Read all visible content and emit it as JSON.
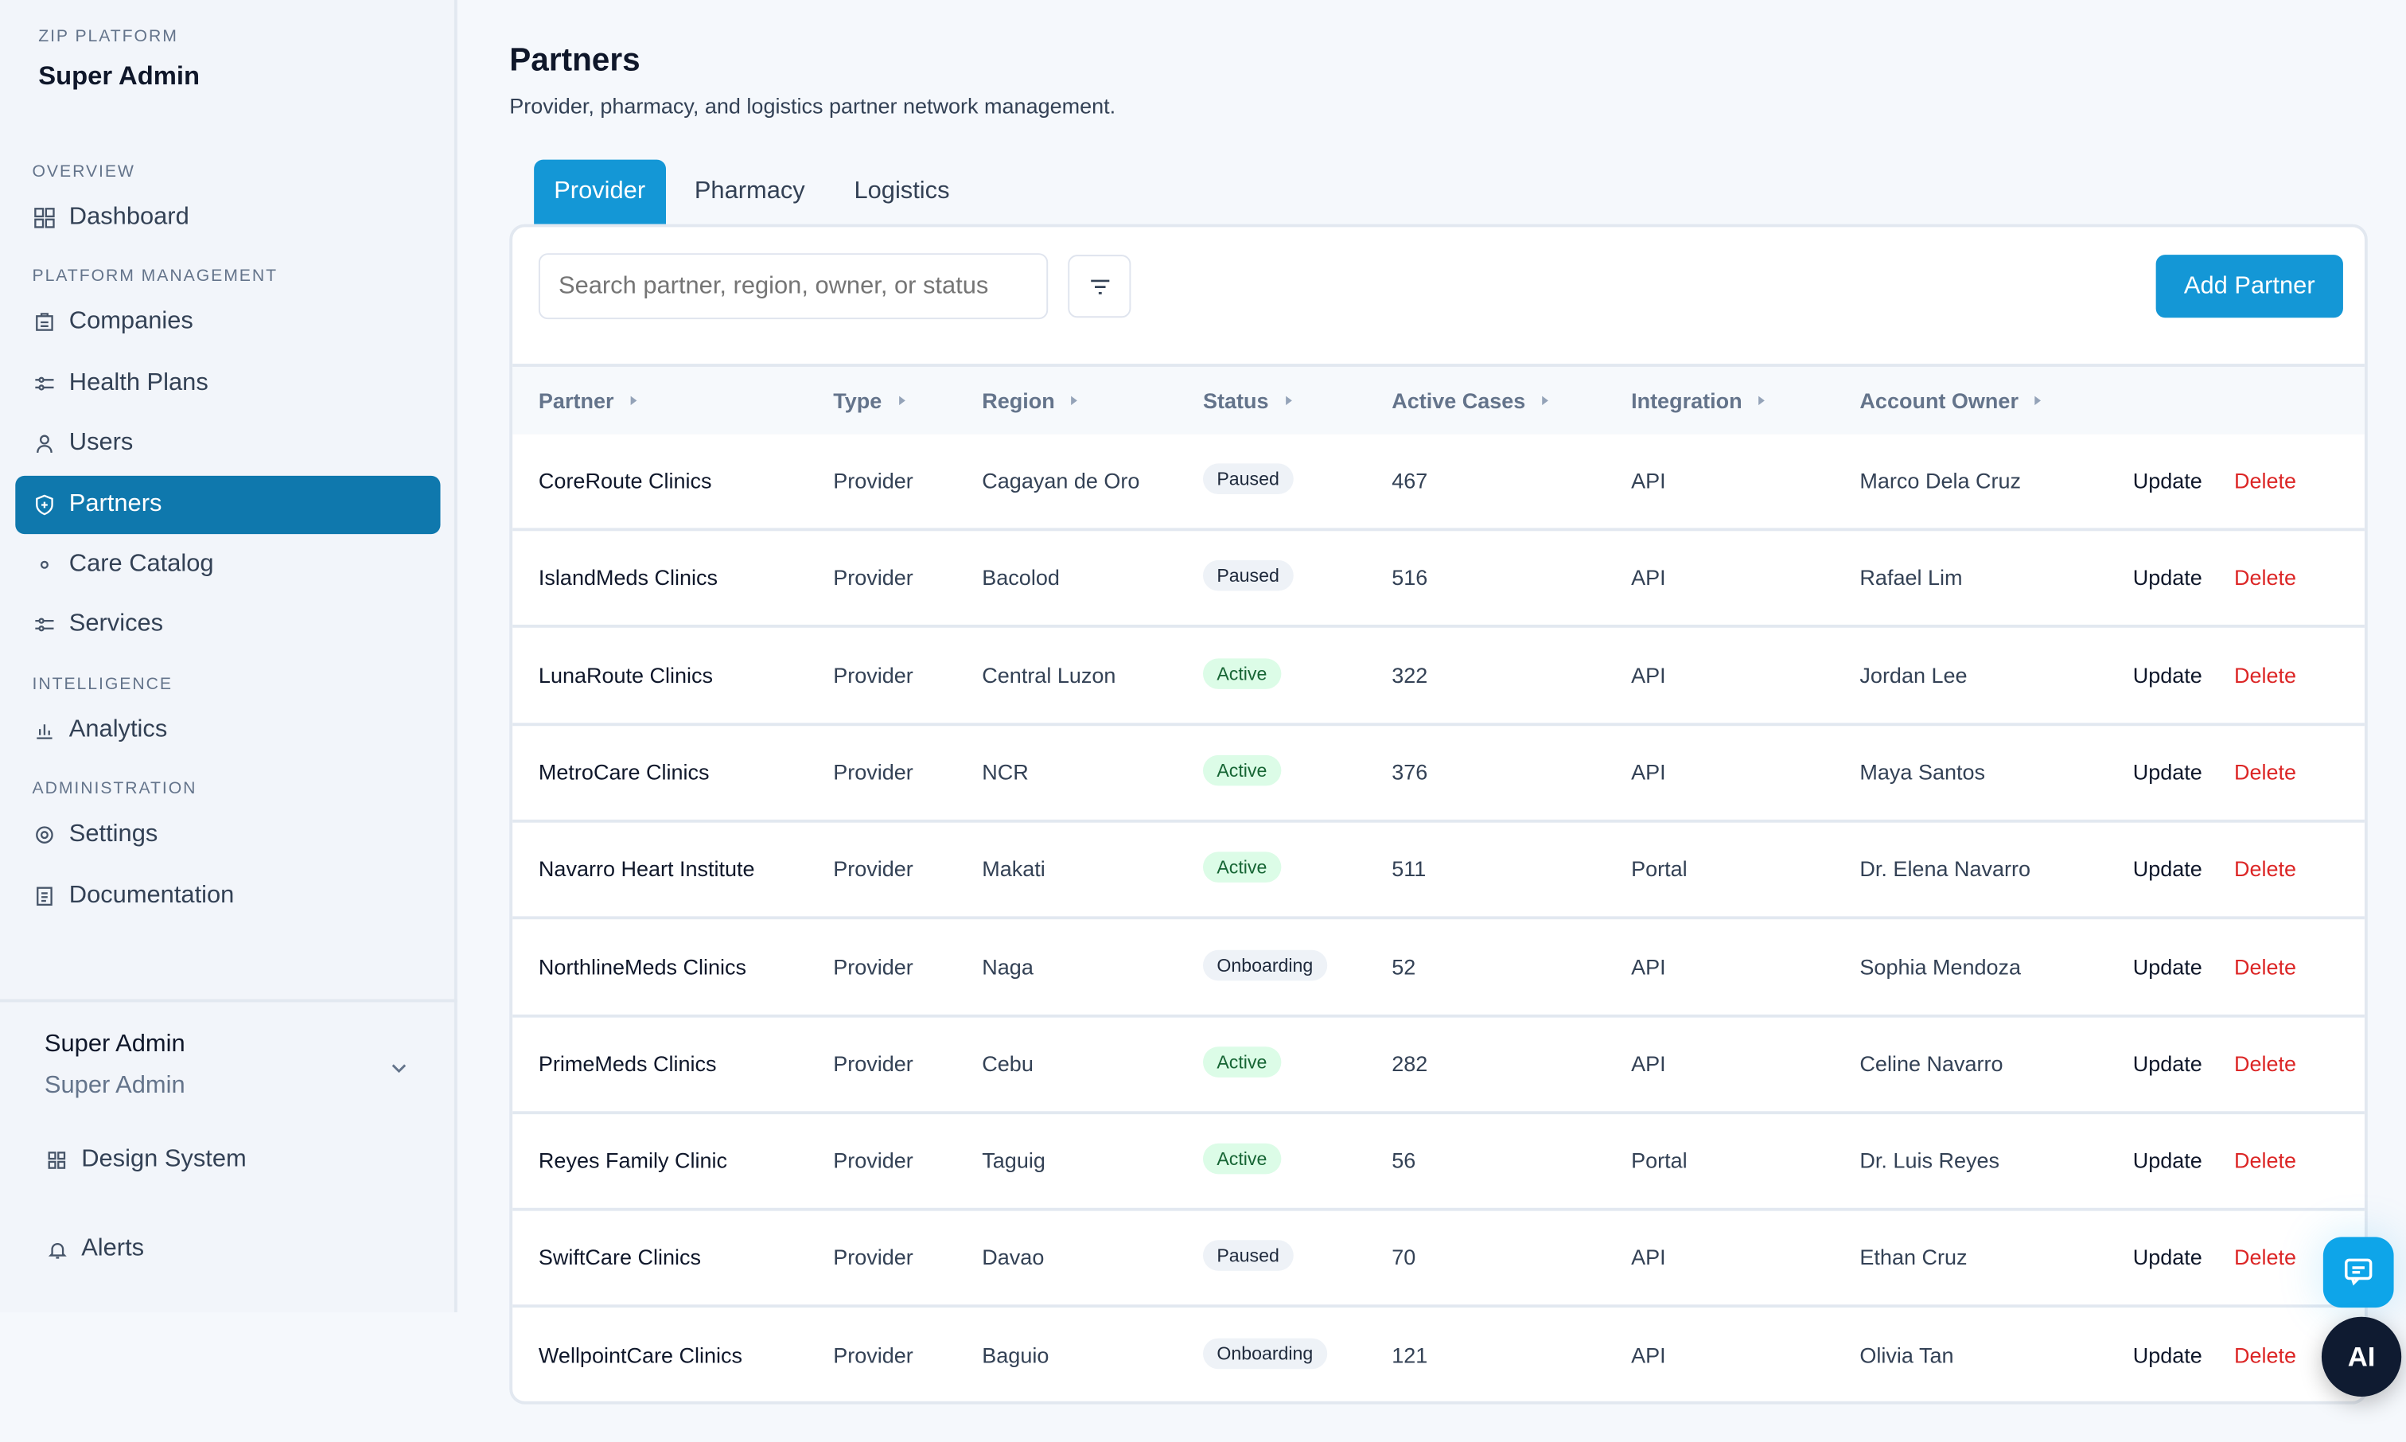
{
  "sidebar": {
    "brand_small": "ZIP PLATFORM",
    "brand_title": "Super Admin",
    "sections": [
      {
        "label": "OVERVIEW",
        "items": [
          {
            "label": "Dashboard",
            "icon": "dashboard-icon"
          }
        ]
      },
      {
        "label": "PLATFORM MANAGEMENT",
        "items": [
          {
            "label": "Companies",
            "icon": "building-icon"
          },
          {
            "label": "Health Plans",
            "icon": "sliders-icon"
          },
          {
            "label": "Users",
            "icon": "user-icon"
          },
          {
            "label": "Partners",
            "icon": "shield-plus-icon",
            "active": true
          },
          {
            "label": "Care Catalog",
            "icon": "dot-icon"
          },
          {
            "label": "Services",
            "icon": "sliders-icon"
          }
        ]
      },
      {
        "label": "INTELLIGENCE",
        "items": [
          {
            "label": "Analytics",
            "icon": "bar-chart-icon"
          }
        ]
      },
      {
        "label": "ADMINISTRATION",
        "items": [
          {
            "label": "Settings",
            "icon": "gear-icon"
          },
          {
            "label": "Documentation",
            "icon": "document-icon"
          }
        ]
      }
    ],
    "user": {
      "name": "Super Admin",
      "role": "Super Admin"
    },
    "design_system": "Design System",
    "alerts": "Alerts"
  },
  "page": {
    "title": "Partners",
    "subtitle": "Provider, pharmacy, and logistics partner network management."
  },
  "tabs": [
    {
      "label": "Provider",
      "active": true
    },
    {
      "label": "Pharmacy"
    },
    {
      "label": "Logistics"
    }
  ],
  "toolbar": {
    "search_placeholder": "Search partner, region, owner, or status",
    "add_label": "Add Partner"
  },
  "columns": [
    "Partner",
    "Type",
    "Region",
    "Status",
    "Active Cases",
    "Integration",
    "Account Owner"
  ],
  "actions": {
    "update": "Update",
    "delete": "Delete"
  },
  "status_colors": {
    "Paused": {
      "bg": "#eef2f7",
      "fg": "#1e293b"
    },
    "Active": {
      "bg": "#dcfce7",
      "fg": "#166534"
    },
    "Onboarding": {
      "bg": "#eef2f7",
      "fg": "#1e293b"
    }
  },
  "accent": "#1497d6",
  "rows": [
    [
      "CoreRoute Clinics",
      "Provider",
      "Cagayan de Oro",
      "Paused",
      "467",
      "API",
      "Marco Dela Cruz"
    ],
    [
      "IslandMeds Clinics",
      "Provider",
      "Bacolod",
      "Paused",
      "516",
      "API",
      "Rafael Lim"
    ],
    [
      "LunaRoute Clinics",
      "Provider",
      "Central Luzon",
      "Active",
      "322",
      "API",
      "Jordan Lee"
    ],
    [
      "MetroCare Clinics",
      "Provider",
      "NCR",
      "Active",
      "376",
      "API",
      "Maya Santos"
    ],
    [
      "Navarro Heart Institute",
      "Provider",
      "Makati",
      "Active",
      "511",
      "Portal",
      "Dr. Elena Navarro"
    ],
    [
      "NorthlineMeds Clinics",
      "Provider",
      "Naga",
      "Onboarding",
      "52",
      "API",
      "Sophia Mendoza"
    ],
    [
      "PrimeMeds Clinics",
      "Provider",
      "Cebu",
      "Active",
      "282",
      "API",
      "Celine Navarro"
    ],
    [
      "Reyes Family Clinic",
      "Provider",
      "Taguig",
      "Active",
      "56",
      "Portal",
      "Dr. Luis Reyes"
    ],
    [
      "SwiftCare Clinics",
      "Provider",
      "Davao",
      "Paused",
      "70",
      "API",
      "Ethan Cruz"
    ],
    [
      "WellpointCare Clinics",
      "Provider",
      "Baguio",
      "Onboarding",
      "121",
      "API",
      "Olivia Tan"
    ]
  ],
  "fab": {
    "ai_label": "AI"
  }
}
